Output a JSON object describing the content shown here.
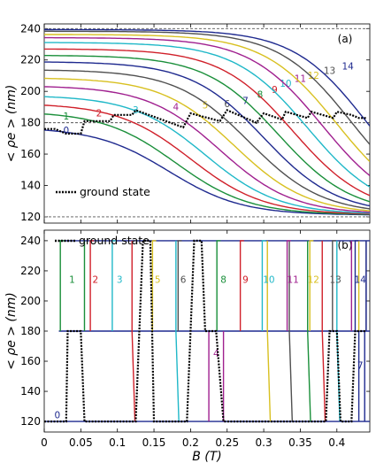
{
  "colors": {
    "0": "#1f2a8f",
    "1": "#1a8f3a",
    "2": "#d0202a",
    "3": "#20b8c8",
    "4": "#a0208f",
    "5": "#d8c020",
    "6": "#505050",
    "7": "#1f2a8f",
    "8": "#1a8f3a",
    "9": "#d0202a",
    "10": "#20b8c8",
    "11": "#a0208f",
    "12": "#d8c020",
    "13": "#505050",
    "14": "#1f2a8f",
    "ground": "#000000"
  },
  "chart_data": [
    {
      "type": "line",
      "panel_label": "(a)",
      "xlim": [
        0,
        0.445
      ],
      "ylim": [
        116,
        243
      ],
      "yticks": [
        "120",
        "140",
        "160",
        "180",
        "200",
        "220",
        "240"
      ],
      "ylabel": "< ρe > (nm)",
      "dashed_reference_lines": [
        120,
        180,
        240
      ],
      "legend": {
        "label": "ground state",
        "placement": "bottom-left"
      },
      "series": [
        {
          "name": "0",
          "label_at": [
            0.03,
            173
          ],
          "y0": 176,
          "b_mid": 0.17,
          "w": 0.05
        },
        {
          "name": "1",
          "label_at": [
            0.03,
            182
          ],
          "y0": 186,
          "b_mid": 0.18,
          "w": 0.05
        },
        {
          "name": "2",
          "label_at": [
            0.075,
            184
          ],
          "y0": 191,
          "b_mid": 0.2,
          "w": 0.05
        },
        {
          "name": "3",
          "label_at": [
            0.125,
            186
          ],
          "y0": 196,
          "b_mid": 0.22,
          "w": 0.05
        },
        {
          "name": "4",
          "label_at": [
            0.18,
            188
          ],
          "y0": 202,
          "b_mid": 0.24,
          "w": 0.05
        },
        {
          "name": "5",
          "label_at": [
            0.22,
            189
          ],
          "y0": 207,
          "b_mid": 0.26,
          "w": 0.05
        },
        {
          "name": "6",
          "label_at": [
            0.25,
            190
          ],
          "y0": 212,
          "b_mid": 0.28,
          "w": 0.05
        },
        {
          "name": "7",
          "label_at": [
            0.275,
            192
          ],
          "y0": 217,
          "b_mid": 0.3,
          "w": 0.05
        },
        {
          "name": "8",
          "label_at": [
            0.295,
            196
          ],
          "y0": 221,
          "b_mid": 0.32,
          "w": 0.05
        },
        {
          "name": "9",
          "label_at": [
            0.315,
            199
          ],
          "y0": 225,
          "b_mid": 0.34,
          "w": 0.05
        },
        {
          "name": "10",
          "label_at": [
            0.33,
            203
          ],
          "y0": 229,
          "b_mid": 0.36,
          "w": 0.05
        },
        {
          "name": "11",
          "label_at": [
            0.35,
            206
          ],
          "y0": 232,
          "b_mid": 0.38,
          "w": 0.05
        },
        {
          "name": "12",
          "label_at": [
            0.368,
            208
          ],
          "y0": 234,
          "b_mid": 0.4,
          "w": 0.05
        },
        {
          "name": "13",
          "label_at": [
            0.39,
            211
          ],
          "y0": 236,
          "b_mid": 0.42,
          "w": 0.05
        },
        {
          "name": "14",
          "label_at": [
            0.415,
            214
          ],
          "y0": 237,
          "b_mid": 0.44,
          "w": 0.05
        }
      ],
      "ground_state_x": [
        0,
        0.015,
        0.03,
        0.05,
        0.055,
        0.09,
        0.095,
        0.12,
        0.125,
        0.19,
        0.2,
        0.24,
        0.25,
        0.29,
        0.3,
        0.325,
        0.33,
        0.36,
        0.365,
        0.395,
        0.4,
        0.42,
        0.43,
        0.44
      ],
      "ground_state_y": [
        176,
        176,
        173,
        173,
        181,
        181,
        185,
        185,
        188,
        177,
        186,
        181,
        188,
        180,
        186,
        182,
        187,
        183,
        187,
        183,
        187,
        185,
        183,
        183
      ]
    },
    {
      "type": "line",
      "panel_label": "(b)",
      "xlim": [
        0,
        0.445
      ],
      "ylim": [
        113,
        247
      ],
      "xticks": [
        "0",
        "0.05",
        "0.1",
        "0.15",
        "0.2",
        "0.25",
        "0.3",
        "0.35",
        "0.4"
      ],
      "yticks": [
        "120",
        "140",
        "160",
        "180",
        "200",
        "220",
        "240"
      ],
      "xlabel": "B (T)",
      "ylabel": "< ρe > (nm)",
      "legend": {
        "label": "ground state",
        "placement": "top-left"
      },
      "transitions": [
        {
          "name": "0",
          "label_at": [
            0.018,
            122
          ]
        },
        {
          "name": "1",
          "label_at": [
            0.038,
            212
          ],
          "x_down": 0.055,
          "x_up": 0.022
        },
        {
          "name": "2",
          "label_at": [
            0.07,
            212
          ],
          "x_down": 0.12,
          "x_up": 0.063
        },
        {
          "name": "3",
          "label_at": [
            0.103,
            212
          ],
          "x_down": 0.18,
          "x_up": 0.093
        },
        {
          "name": "4",
          "label_at": [
            0.235,
            163
          ],
          "x_down": 0.245,
          "x_up": 0.225
        },
        {
          "name": "5",
          "label_at": [
            0.155,
            212
          ],
          "x_down": 0.305,
          "x_up": 0.148
        },
        {
          "name": "6",
          "label_at": [
            0.19,
            212
          ],
          "x_down": 0.335,
          "x_up": 0.183
        },
        {
          "name": "7",
          "label_at": [
            0.432,
            155
          ],
          "x_down": 0.438,
          "x_up": 0.43
        },
        {
          "name": "8",
          "label_at": [
            0.245,
            212
          ],
          "x_down": 0.36,
          "x_up": 0.236
        },
        {
          "name": "9",
          "label_at": [
            0.275,
            212
          ],
          "x_down": 0.38,
          "x_up": 0.268
        },
        {
          "name": "10",
          "label_at": [
            0.307,
            212
          ],
          "x_down": 0.4,
          "x_up": 0.298
        },
        {
          "name": "11",
          "label_at": [
            0.34,
            212
          ],
          "x_down": 0.42,
          "x_up": 0.332
        },
        {
          "name": "12",
          "label_at": [
            0.368,
            212
          ],
          "x_down": 0.43,
          "x_up": 0.363
        },
        {
          "name": "13",
          "label_at": [
            0.398,
            212
          ],
          "x_down": 0.44,
          "x_up": 0.394
        },
        {
          "name": "14",
          "label_at": [
            0.432,
            212
          ],
          "x_down": 0.44,
          "x_up": 0.425
        }
      ],
      "ground_state_x": [
        0,
        0.03,
        0.032,
        0.05,
        0.055,
        0.125,
        0.13,
        0.135,
        0.145,
        0.15,
        0.195,
        0.2,
        0.205,
        0.215,
        0.22,
        0.235,
        0.245,
        0.385,
        0.39,
        0.4,
        0.405,
        0.42,
        0.425,
        0.44
      ],
      "ground_state_y": [
        120,
        120,
        180,
        180,
        120,
        120,
        180,
        240,
        240,
        120,
        120,
        180,
        240,
        240,
        180,
        180,
        120,
        120,
        180,
        180,
        120,
        120,
        180,
        180
      ]
    }
  ]
}
